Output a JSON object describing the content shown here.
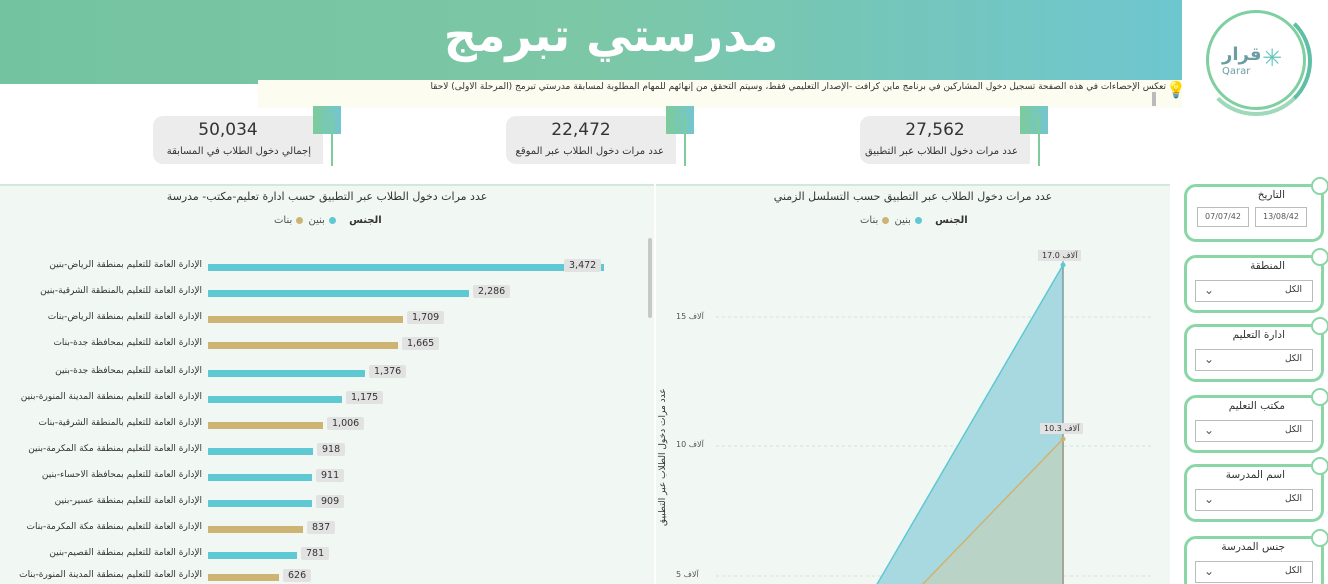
{
  "header": {
    "title": "مدرستي تبرمج",
    "notice": "تعكس الإحصاءات في هذه الصفحة تسجيل دخول المشاركين في برنامج ماين كرافت -الإصدار التعليمي فقط، وسيتم التحقق من إنهائهم للمهام المطلوبة لمسابقة مدرستي تبرمج (المرحلة الأولى) لاحقا"
  },
  "logo": {
    "text": "قرار",
    "sub": "Qarar"
  },
  "kpis": [
    {
      "value": "27,562",
      "label": "عدد مرات دخول الطلاب عبر التطبيق"
    },
    {
      "value": "22,472",
      "label": "عدد مرات دخول الطلاب عبر الموقع"
    },
    {
      "value": "50,034",
      "label": "إجمالي دخول الطلاب في المسابقة"
    }
  ],
  "bar_chart": {
    "title": "عدد مرات دخول الطلاب عبر التطبيق حسب ادارة تعليم-مكتب- مدرسة",
    "legend_title": "الجنس",
    "legend": [
      "بنين",
      "بنات"
    ],
    "colors": {
      "boys": "#5ec8d3",
      "girls": "#cdb473"
    },
    "rows": [
      {
        "label": "الإدارة العامة للتعليم بمنطقة الرياض-بنين",
        "value": 3472,
        "display": "3,472",
        "series": "boys"
      },
      {
        "label": "الإدارة العامة للتعليم بالمنطقة الشرقية-بنين",
        "value": 2286,
        "display": "2,286",
        "series": "boys"
      },
      {
        "label": "الإدارة العامة للتعليم بمنطقة الرياض-بنات",
        "value": 1709,
        "display": "1,709",
        "series": "girls"
      },
      {
        "label": "الإدارة العامة للتعليم بمحافظة جدة-بنات",
        "value": 1665,
        "display": "1,665",
        "series": "girls"
      },
      {
        "label": "الإدارة العامة للتعليم بمحافظة جدة-بنين",
        "value": 1376,
        "display": "1,376",
        "series": "boys"
      },
      {
        "label": "الإدارة العامة للتعليم بمنطقة المدينة المنورة-بنين",
        "value": 1175,
        "display": "1,175",
        "series": "boys"
      },
      {
        "label": "الإدارة العامة للتعليم بالمنطقة الشرقية-بنات",
        "value": 1006,
        "display": "1,006",
        "series": "girls"
      },
      {
        "label": "الإدارة العامة للتعليم بمنطقة مكة المكرمة-بنين",
        "value": 918,
        "display": "918",
        "series": "boys"
      },
      {
        "label": "الإدارة العامة للتعليم بمحافظة الاحساء-بنين",
        "value": 911,
        "display": "911",
        "series": "boys"
      },
      {
        "label": "الإدارة العامة للتعليم بمنطقة عسير-بنين",
        "value": 909,
        "display": "909",
        "series": "boys"
      },
      {
        "label": "الإدارة العامة للتعليم بمنطقة مكة المكرمة-بنات",
        "value": 837,
        "display": "837",
        "series": "girls"
      },
      {
        "label": "الإدارة العامة للتعليم بمنطقة القصيم-بنين",
        "value": 781,
        "display": "781",
        "series": "boys"
      },
      {
        "label": "الإدارة العامة للتعليم بمنطقة المدينة المنورة-بنات",
        "value": 626,
        "display": "626",
        "series": "girls"
      }
    ]
  },
  "area_chart": {
    "title": "عدد مرات دخول الطلاب عبر التطبيق حسب التسلسل الزمني",
    "legend_title": "الجنس",
    "legend": [
      "بنين",
      "بنات"
    ],
    "ylabel": "عدد مرات دخول الطلاب عبر التطبيق",
    "yticks": [
      "15 آلاف",
      "10 آلاف",
      "5 آلاف"
    ],
    "data_labels": [
      "17.0 آلاف",
      "10.3 آلاف"
    ],
    "peak_boys": 17.0,
    "peak_girls": 10.3
  },
  "filters": {
    "date": {
      "title": "التاريخ",
      "from": "07/07/42",
      "to": "13/08/42"
    },
    "items": [
      {
        "title": "المنطقة",
        "value": "الكل"
      },
      {
        "title": "ادارة التعليم",
        "value": "الكل"
      },
      {
        "title": "مكتب التعليم",
        "value": "الكل"
      },
      {
        "title": "اسم المدرسة",
        "value": "الكل"
      },
      {
        "title": "جنس المدرسة",
        "value": "الكل"
      }
    ]
  }
}
